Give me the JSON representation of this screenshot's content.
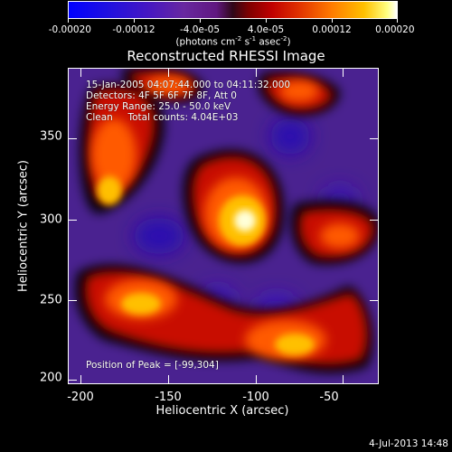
{
  "colorbar": {
    "tick_labels": [
      "-0.00020",
      "-0.00012",
      "-4.0e-05",
      "4.0e-05",
      "0.00012",
      "0.00020"
    ],
    "units_main": "(photons cm",
    "units_sup1": "-2",
    "units_mid": " s",
    "units_sup2": "-1",
    "units_end": " asec",
    "units_sup3": "-2",
    "units_close": ")"
  },
  "title": "Reconstructed RHESSI Image",
  "info": {
    "time_range": "15-Jan-2005 04:07:44.000 to 04:11:32.000",
    "detectors": "Detectors: 4F 5F 6F 7F 8F, Att 0",
    "energy": "Energy Range: 25.0 - 50.0 keV",
    "clean": "Clean     Total counts: 4.04E+03",
    "peak": "Position of Peak = [-99,304]"
  },
  "axes": {
    "xlabel": "Heliocentric X (arcsec)",
    "ylabel": "Heliocentric Y (arcsec)",
    "xticks": [
      "-200",
      "-150",
      "-100",
      "-50"
    ],
    "yticks": [
      "200",
      "250",
      "300",
      "350"
    ]
  },
  "timestamp": "4-Jul-2013 14:48",
  "colors": {
    "background": "#000000",
    "low": "#2010e0",
    "negative": "#5a2aa0",
    "zero": "#000000",
    "positive": "#e03000",
    "high": "#ffffff"
  }
}
